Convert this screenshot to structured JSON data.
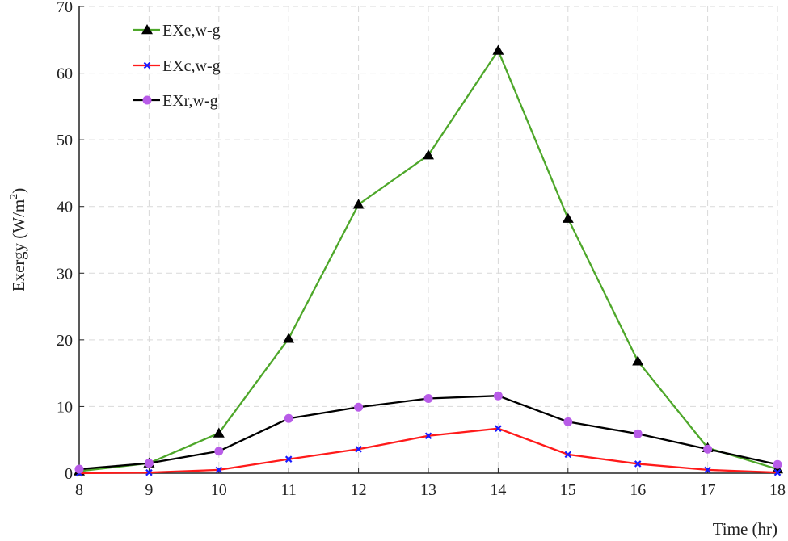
{
  "chart_data": {
    "type": "line",
    "xlabel": "Time (hr)",
    "ylabel": "Exergy (W/m²)",
    "ylabel_main": "Exergy (W/m",
    "ylabel_sup": "2",
    "ylabel_close": ")",
    "xlim": [
      8,
      18
    ],
    "ylim": [
      0,
      70
    ],
    "x_ticks": [
      8,
      9,
      10,
      11,
      12,
      13,
      14,
      15,
      16,
      17,
      18
    ],
    "y_ticks": [
      0,
      10,
      20,
      30,
      40,
      50,
      60,
      70
    ],
    "grid": true,
    "legend_position": "top-left",
    "x": [
      8,
      9,
      10,
      11,
      12,
      13,
      14,
      15,
      16,
      17,
      18
    ],
    "series": [
      {
        "name": "EXe,w-g",
        "color": "#4ea72a",
        "marker": "triangle",
        "values": [
          0.3,
          1.5,
          6.0,
          20.2,
          40.3,
          47.7,
          63.4,
          38.2,
          16.8,
          3.8,
          0.6
        ]
      },
      {
        "name": "EXc,w-g",
        "color": "#ff1a1a",
        "marker": "x",
        "marker_color": "#1a1aff",
        "values": [
          0.0,
          0.1,
          0.5,
          2.1,
          3.6,
          5.6,
          6.7,
          2.8,
          1.4,
          0.5,
          0.1
        ]
      },
      {
        "name": "EXr,w-g",
        "color": "#000000",
        "marker": "circle",
        "marker_color": "#b85ce8",
        "values": [
          0.6,
          1.5,
          3.3,
          8.2,
          9.9,
          11.2,
          11.6,
          7.7,
          5.9,
          3.6,
          1.3
        ]
      }
    ]
  }
}
